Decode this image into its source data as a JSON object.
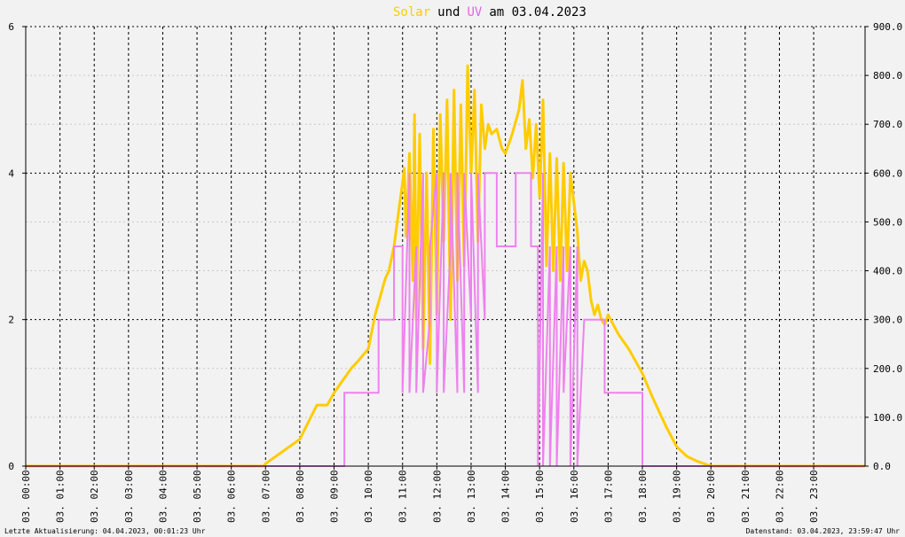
{
  "title": {
    "solar_word": "Solar",
    "und": "und",
    "uv_word": "UV",
    "am_date": "am 03.04.2023",
    "solar_color": "#ffcc00",
    "uv_color": "#e066e0",
    "text_color": "#000000"
  },
  "footer": {
    "left": "Letzte Aktualisierung: 04.04.2023, 00:01:23 Uhr",
    "right": "Datenstand: 03.04.2023, 23:59:47 Uhr"
  },
  "colors": {
    "background": "#f2f2f2",
    "solar_line": "#ffcc00",
    "uv_line": "#ee82ee",
    "baseline": "#ff8080"
  },
  "chart_data": {
    "type": "line",
    "title": "Solar und UV am 03.04.2023",
    "xlim": [
      0,
      24.5
    ],
    "x_tick_labels": [
      "03. 00:00",
      "03. 01:00",
      "03. 02:00",
      "03. 03:00",
      "03. 04:00",
      "03. 05:00",
      "03. 06:00",
      "03. 07:00",
      "03. 08:00",
      "03. 09:00",
      "03. 10:00",
      "03. 11:00",
      "03. 12:00",
      "03. 13:00",
      "03. 14:00",
      "03. 15:00",
      "03. 16:00",
      "03. 17:00",
      "03. 18:00",
      "03. 19:00",
      "03. 20:00",
      "03. 21:00",
      "03. 22:00",
      "03. 23:00"
    ],
    "y_left": {
      "ylim": [
        0,
        6
      ],
      "ticks": [
        "0",
        "2",
        "4",
        "6"
      ]
    },
    "y_right": {
      "ylim": [
        0,
        900
      ],
      "ticks": [
        "0.0",
        "100.0",
        "200.0",
        "300.0",
        "400.0",
        "500.0",
        "600.0",
        "700.0",
        "800.0",
        "900.0"
      ]
    },
    "grid": true,
    "series": [
      {
        "name": "Solar",
        "axis": "right",
        "x": [
          0,
          6.95,
          7.0,
          7.5,
          8.0,
          8.5,
          8.8,
          9.0,
          9.3,
          9.5,
          9.7,
          10.0,
          10.2,
          10.5,
          10.6,
          10.75,
          10.9,
          11.0,
          11.05,
          11.1,
          11.2,
          11.3,
          11.35,
          11.4,
          11.5,
          11.6,
          11.7,
          11.8,
          11.9,
          12.0,
          12.1,
          12.2,
          12.3,
          12.4,
          12.5,
          12.6,
          12.7,
          12.8,
          12.9,
          13.0,
          13.1,
          13.2,
          13.3,
          13.4,
          13.5,
          13.6,
          13.75,
          13.9,
          14.0,
          14.2,
          14.4,
          14.5,
          14.6,
          14.7,
          14.8,
          14.9,
          15.0,
          15.1,
          15.2,
          15.3,
          15.4,
          15.5,
          15.6,
          15.7,
          15.8,
          15.9,
          16.0,
          16.1,
          16.2,
          16.3,
          16.4,
          16.5,
          16.6,
          16.7,
          16.8,
          16.9,
          17.0,
          17.3,
          17.6,
          18.0,
          18.3,
          18.5,
          18.7,
          19.0,
          19.3,
          19.6,
          20.0,
          24.5
        ],
        "y": [
          0,
          0,
          5,
          30,
          55,
          125,
          125,
          150,
          180,
          200,
          215,
          240,
          310,
          385,
          400,
          450,
          530,
          580,
          610,
          470,
          640,
          380,
          720,
          300,
          680,
          240,
          600,
          210,
          690,
          310,
          720,
          460,
          750,
          300,
          770,
          380,
          740,
          410,
          820,
          600,
          770,
          460,
          740,
          650,
          700,
          680,
          690,
          650,
          640,
          680,
          730,
          790,
          650,
          710,
          590,
          700,
          550,
          750,
          410,
          640,
          400,
          630,
          380,
          620,
          400,
          600,
          540,
          480,
          380,
          420,
          400,
          340,
          310,
          330,
          300,
          290,
          310,
          270,
          240,
          190,
          140,
          110,
          80,
          40,
          20,
          10,
          0,
          0
        ]
      },
      {
        "name": "UV",
        "axis": "left",
        "x": [
          0,
          9.3,
          9.3,
          10.3,
          10.3,
          10.75,
          10.75,
          11.0,
          11.0,
          11.2,
          11.2,
          11.4,
          11.4,
          11.6,
          11.6,
          11.8,
          11.8,
          12.0,
          12.0,
          12.2,
          12.2,
          12.4,
          12.4,
          12.6,
          12.6,
          12.8,
          12.8,
          13.0,
          13.0,
          13.2,
          13.2,
          13.4,
          13.4,
          13.75,
          13.75,
          14.3,
          14.3,
          14.75,
          14.75,
          14.95,
          14.95,
          15.1,
          15.1,
          15.3,
          15.3,
          15.5,
          15.5,
          15.7,
          15.7,
          15.9,
          15.9,
          16.1,
          16.1,
          16.3,
          16.3,
          16.9,
          16.9,
          18.0,
          18.0,
          24.5
        ],
        "y": [
          0,
          0,
          1,
          1,
          2,
          2,
          3,
          3,
          1,
          4,
          1,
          3,
          1,
          4,
          1,
          2,
          3,
          4,
          1,
          4,
          1,
          3,
          4,
          1,
          4,
          1,
          4,
          2,
          4,
          1,
          4,
          2,
          4,
          4,
          3,
          3,
          4,
          4,
          3,
          3,
          0,
          4,
          0,
          3,
          0,
          3,
          0,
          3,
          1,
          3,
          0,
          3,
          0,
          2,
          2,
          2,
          1,
          1,
          0,
          0
        ]
      }
    ]
  }
}
